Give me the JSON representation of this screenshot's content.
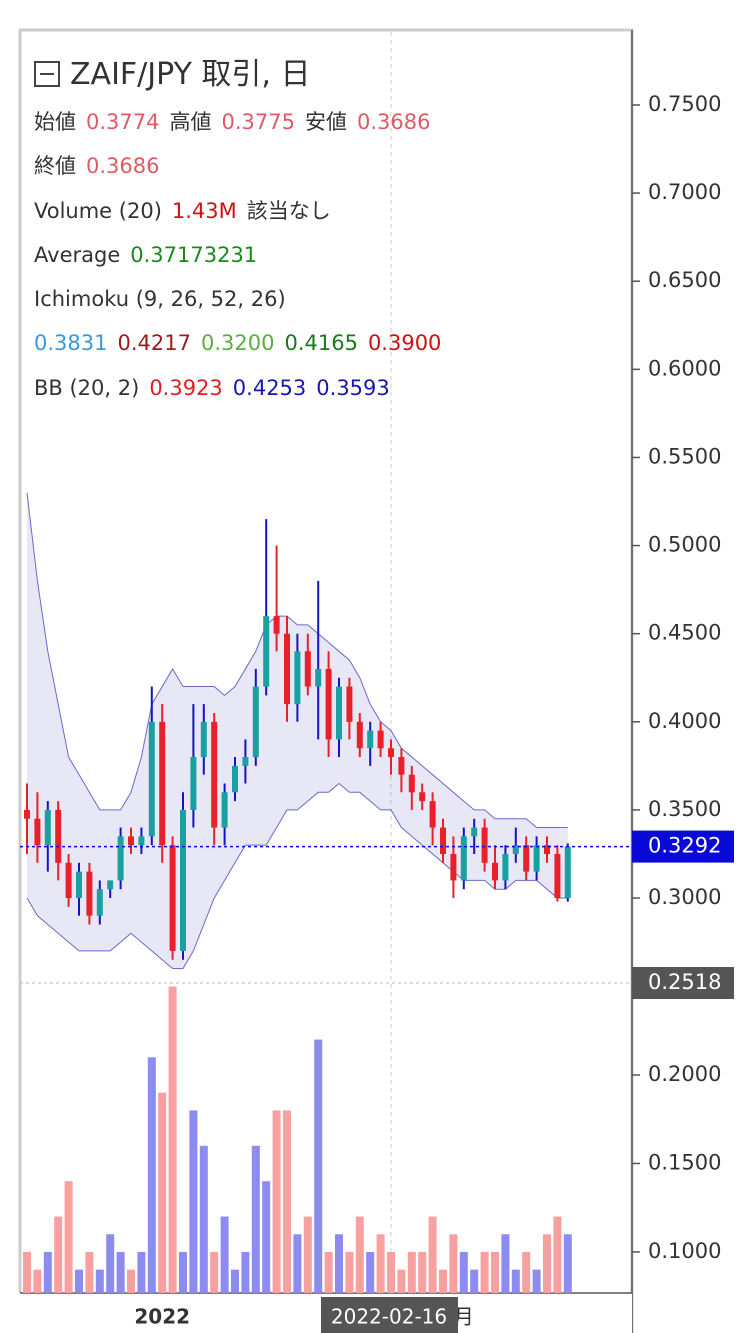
{
  "chart_data": {
    "type": "candlestick",
    "legend": {
      "title": "ZAIF/JPY 取引, 日",
      "rows": [
        [
          {
            "text": "始値",
            "color": "#333"
          },
          {
            "text": "0.3774",
            "color": "#e05a64"
          },
          {
            "text": "高値",
            "color": "#333"
          },
          {
            "text": "0.3775",
            "color": "#e05a64"
          },
          {
            "text": "安値",
            "color": "#333"
          },
          {
            "text": "0.3686",
            "color": "#e05a64"
          }
        ],
        [
          {
            "text": "終値",
            "color": "#333"
          },
          {
            "text": "0.3686",
            "color": "#e05a64"
          }
        ],
        [
          {
            "text": "Volume (20)",
            "color": "#333"
          },
          {
            "text": "1.43M",
            "color": "#d01010"
          },
          {
            "text": "該当なし",
            "color": "#333"
          }
        ],
        [
          {
            "text": "Average",
            "color": "#333"
          },
          {
            "text": "0.37173231",
            "color": "#1a8a1a"
          }
        ],
        [
          {
            "text": "Ichimoku (9, 26, 52, 26)",
            "color": "#333"
          }
        ],
        [
          {
            "text": "0.3831",
            "color": "#3a9ad9"
          },
          {
            "text": "0.4217",
            "color": "#9b1c1c"
          },
          {
            "text": "0.3200",
            "color": "#58b040"
          },
          {
            "text": "0.4165",
            "color": "#1a7a1a"
          },
          {
            "text": "0.3900",
            "color": "#d01010"
          }
        ],
        [
          {
            "text": "BB (20, 2)",
            "color": "#333"
          },
          {
            "text": "0.3923",
            "color": "#e02020"
          },
          {
            "text": "0.4253",
            "color": "#1818b0"
          },
          {
            "text": "0.3593",
            "color": "#1818b0"
          }
        ]
      ]
    },
    "categories": [
      null,
      null,
      null,
      null,
      null,
      null,
      null,
      null,
      null,
      null,
      null,
      null,
      null,
      "2022",
      null,
      null,
      null,
      null,
      null,
      null,
      null,
      null,
      null,
      null,
      null,
      null,
      null,
      null,
      null,
      null,
      null,
      null,
      null,
      null,
      null,
      "2022-02-16",
      null,
      null,
      null,
      null,
      null,
      null,
      "月",
      null,
      null,
      null,
      null,
      null,
      null,
      null,
      null,
      null,
      null
    ],
    "highlight_category": 35,
    "open": [
      0.35,
      0.345,
      0.33,
      0.35,
      0.32,
      0.3,
      0.315,
      0.29,
      0.305,
      0.31,
      0.335,
      0.33,
      0.335,
      0.4,
      0.33,
      0.27,
      0.35,
      0.38,
      0.4,
      0.34,
      0.36,
      0.375,
      0.38,
      0.42,
      0.46,
      0.45,
      0.41,
      0.44,
      0.42,
      0.43,
      0.39,
      0.42,
      0.4,
      0.385,
      0.395,
      0.385,
      0.38,
      0.37,
      0.36,
      0.355,
      0.34,
      0.325,
      0.31,
      0.335,
      0.34,
      0.32,
      0.31,
      0.325,
      0.33,
      0.315,
      0.33,
      0.325,
      0.3
    ],
    "high": [
      0.365,
      0.36,
      0.355,
      0.355,
      0.325,
      0.32,
      0.32,
      0.31,
      0.31,
      0.34,
      0.34,
      0.34,
      0.42,
      0.41,
      0.335,
      0.36,
      0.41,
      0.41,
      0.405,
      0.365,
      0.38,
      0.39,
      0.43,
      0.515,
      0.5,
      0.46,
      0.45,
      0.45,
      0.48,
      0.44,
      0.425,
      0.425,
      0.405,
      0.4,
      0.4,
      0.39,
      0.385,
      0.375,
      0.365,
      0.36,
      0.345,
      0.335,
      0.34,
      0.345,
      0.345,
      0.33,
      0.33,
      0.34,
      0.335,
      0.335,
      0.335,
      0.33,
      0.331
    ],
    "low": [
      0.325,
      0.32,
      0.315,
      0.31,
      0.295,
      0.29,
      0.285,
      0.285,
      0.3,
      0.305,
      0.325,
      0.325,
      0.33,
      0.32,
      0.265,
      0.265,
      0.34,
      0.37,
      0.33,
      0.33,
      0.355,
      0.365,
      0.375,
      0.415,
      0.44,
      0.4,
      0.4,
      0.415,
      0.39,
      0.38,
      0.38,
      0.39,
      0.38,
      0.375,
      0.38,
      0.37,
      0.36,
      0.35,
      0.35,
      0.33,
      0.32,
      0.3,
      0.305,
      0.325,
      0.315,
      0.305,
      0.305,
      0.32,
      0.31,
      0.31,
      0.32,
      0.298,
      0.298
    ],
    "close": [
      0.345,
      0.33,
      0.35,
      0.32,
      0.3,
      0.315,
      0.29,
      0.305,
      0.31,
      0.335,
      0.33,
      0.335,
      0.4,
      0.33,
      0.27,
      0.35,
      0.38,
      0.4,
      0.34,
      0.36,
      0.375,
      0.38,
      0.42,
      0.46,
      0.45,
      0.41,
      0.44,
      0.42,
      0.43,
      0.39,
      0.42,
      0.4,
      0.385,
      0.395,
      0.385,
      0.38,
      0.37,
      0.36,
      0.355,
      0.34,
      0.325,
      0.31,
      0.335,
      0.34,
      0.32,
      0.31,
      0.325,
      0.33,
      0.315,
      0.33,
      0.325,
      0.3,
      0.3292
    ],
    "up_color": "#1aa0a0",
    "up_wick": "#1414c0",
    "down_color": "#e8202a",
    "bands": [
      {
        "color": "#6a6ac8",
        "fill": "rgba(120,120,200,0.18)",
        "upper": [
          0.53,
          0.48,
          0.44,
          0.41,
          0.38,
          0.37,
          0.36,
          0.35,
          0.35,
          0.35,
          0.36,
          0.38,
          0.41,
          0.42,
          0.43,
          0.42,
          0.42,
          0.42,
          0.42,
          0.415,
          0.42,
          0.43,
          0.44,
          0.455,
          0.46,
          0.46,
          0.455,
          0.455,
          0.45,
          0.445,
          0.44,
          0.435,
          0.425,
          0.41,
          0.4,
          0.395,
          0.385,
          0.38,
          0.375,
          0.37,
          0.365,
          0.36,
          0.355,
          0.35,
          0.35,
          0.345,
          0.345,
          0.345,
          0.345,
          0.34,
          0.34,
          0.34,
          0.34
        ],
        "lower": [
          0.3,
          0.29,
          0.285,
          0.28,
          0.275,
          0.27,
          0.27,
          0.27,
          0.27,
          0.275,
          0.28,
          0.275,
          0.27,
          0.265,
          0.26,
          0.26,
          0.27,
          0.285,
          0.3,
          0.31,
          0.32,
          0.33,
          0.33,
          0.33,
          0.34,
          0.35,
          0.35,
          0.355,
          0.36,
          0.36,
          0.365,
          0.36,
          0.36,
          0.355,
          0.35,
          0.35,
          0.34,
          0.335,
          0.33,
          0.325,
          0.32,
          0.315,
          0.31,
          0.31,
          0.31,
          0.305,
          0.305,
          0.31,
          0.31,
          0.31,
          0.305,
          0.3,
          0.3
        ]
      }
    ],
    "ylim": [
      0.2518,
      0.7914
    ],
    "yticks": [
      {
        "value": 0.75,
        "label": "0.7500"
      },
      {
        "value": 0.7,
        "label": "0.7000"
      },
      {
        "value": 0.65,
        "label": "0.6500"
      },
      {
        "value": 0.6,
        "label": "0.6000"
      },
      {
        "value": 0.55,
        "label": "0.5500"
      },
      {
        "value": 0.5,
        "label": "0.5000"
      },
      {
        "value": 0.45,
        "label": "0.4500"
      },
      {
        "value": 0.4,
        "label": "0.4000"
      },
      {
        "value": 0.35,
        "label": "0.3500"
      },
      {
        "value": 0.3,
        "label": "0.3000"
      }
    ],
    "last_price": {
      "value": 0.3292,
      "label": "0.3292",
      "color": "#0a0ad8"
    },
    "pane_floor": {
      "value": 0.2518,
      "label": "0.2518",
      "color": "#555"
    },
    "volume": {
      "values": [
        0.1,
        0.09,
        0.1,
        0.12,
        0.14,
        0.09,
        0.1,
        0.09,
        0.11,
        0.1,
        0.09,
        0.1,
        0.21,
        0.19,
        0.25,
        0.1,
        0.18,
        0.16,
        0.1,
        0.12,
        0.09,
        0.1,
        0.16,
        0.14,
        0.18,
        0.18,
        0.11,
        0.12,
        0.22,
        0.1,
        0.11,
        0.1,
        0.12,
        0.1,
        0.11,
        0.1,
        0.09,
        0.1,
        0.1,
        0.12,
        0.09,
        0.11,
        0.1,
        0.09,
        0.1,
        0.1,
        0.11,
        0.09,
        0.1,
        0.09,
        0.11,
        0.12,
        0.11
      ],
      "up_color": "#8c8cf0",
      "down_color": "#f7a0a0",
      "ylim": [
        0.0768,
        0.252
      ],
      "yticks": [
        {
          "value": 0.2,
          "label": "0.2000"
        },
        {
          "value": 0.15,
          "label": "0.1500"
        },
        {
          "value": 0.1,
          "label": "0.1000"
        }
      ]
    }
  }
}
